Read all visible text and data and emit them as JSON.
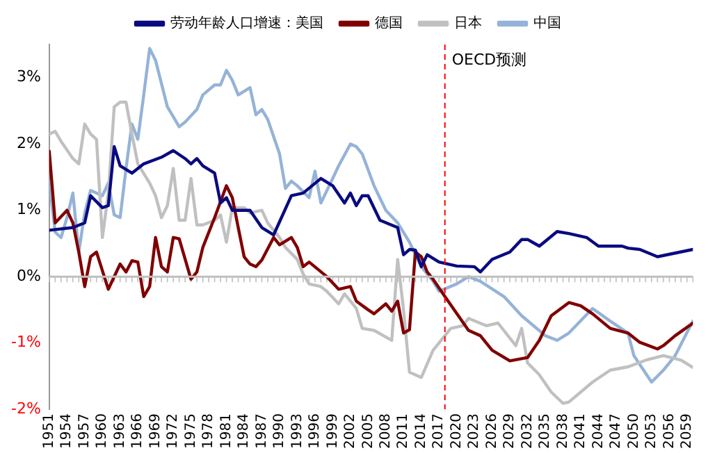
{
  "chart_data": {
    "type": "line",
    "legend": "top",
    "grid": false,
    "marker": "none",
    "line_style": "solid",
    "xlim": [
      1951,
      2060
    ],
    "xticks": [
      1951,
      1954,
      1957,
      1960,
      1963,
      1966,
      1969,
      1972,
      1975,
      1978,
      1981,
      1984,
      1987,
      1990,
      1993,
      1996,
      1999,
      2002,
      2005,
      2008,
      2011,
      2014,
      2017,
      2020,
      2023,
      2026,
      2029,
      2032,
      2035,
      2038,
      2041,
      2044,
      2047,
      2050,
      2053,
      2056,
      2059
    ],
    "ylim": [
      -2,
      3.5
    ],
    "yticks": [
      {
        "value": -2,
        "label": "-2%"
      },
      {
        "value": -1,
        "label": "-1%"
      },
      {
        "value": 0,
        "label": "0%"
      },
      {
        "value": 1,
        "label": "1%"
      },
      {
        "value": 2,
        "label": "2%"
      },
      {
        "value": 3,
        "label": "3%"
      }
    ],
    "ref_lines": [
      {
        "axis": "y",
        "value": 0,
        "color": "#bfbfbf",
        "line_style": "solid"
      },
      {
        "axis": "x",
        "value": 2018,
        "label": "OECD预测",
        "color": "#ff0000",
        "line_style": "dashed"
      }
    ],
    "series": [
      {
        "name": "劳动年龄人口增速：美国",
        "color": "#0a0a80",
        "x": [
          1951,
          1955,
          1957,
          1958,
          1960,
          1961,
          1962,
          1963,
          1965,
          1967,
          1970,
          1972,
          1974,
          1975,
          1976,
          1977,
          1979,
          1980,
          1981,
          1982,
          1985,
          1987,
          1989,
          1992,
          1994,
          1997,
          1999,
          2001,
          2002,
          2003,
          2004,
          2005,
          2007,
          2010,
          2011,
          2012,
          2013,
          2014,
          2015,
          2017,
          2020,
          2023,
          2024,
          2026,
          2029,
          2031,
          2032,
          2034,
          2037,
          2039,
          2042,
          2044,
          2048,
          2049,
          2051,
          2054,
          2060
        ],
        "values": [
          0.7,
          0.74,
          0.81,
          1.22,
          1.04,
          1.07,
          1.96,
          1.67,
          1.56,
          1.7,
          1.8,
          1.9,
          1.78,
          1.7,
          1.78,
          1.67,
          1.56,
          1.11,
          1.19,
          1.0,
          1.0,
          0.74,
          0.63,
          1.22,
          1.26,
          1.48,
          1.37,
          1.11,
          1.26,
          1.07,
          1.22,
          1.22,
          0.85,
          0.74,
          0.33,
          0.41,
          0.4,
          0.15,
          0.33,
          0.22,
          0.16,
          0.15,
          0.07,
          0.26,
          0.37,
          0.56,
          0.56,
          0.46,
          0.68,
          0.65,
          0.59,
          0.46,
          0.46,
          0.43,
          0.41,
          0.3,
          0.41
        ]
      },
      {
        "name": "德国",
        "color": "#800000",
        "x": [
          1951,
          1952,
          1954,
          1955,
          1956,
          1957,
          1958,
          1959,
          1961,
          1963,
          1964,
          1965,
          1966,
          1967,
          1968,
          1969,
          1970,
          1971,
          1972,
          1973,
          1975,
          1976,
          1977,
          1979,
          1981,
          1982,
          1983,
          1984,
          1985,
          1986,
          1987,
          1989,
          1990,
          1992,
          1993,
          1994,
          1995,
          1998,
          2000,
          2002,
          2003,
          2005,
          2006,
          2008,
          2009,
          2010,
          2011,
          2012,
          2013,
          2014,
          2015,
          2016,
          2018,
          2022,
          2024,
          2026,
          2029,
          2032,
          2034,
          2036,
          2039,
          2041,
          2043,
          2046,
          2049,
          2051,
          2054,
          2055,
          2057,
          2060
        ],
        "values": [
          1.89,
          0.81,
          1.0,
          0.81,
          0.37,
          -0.15,
          0.3,
          0.37,
          -0.19,
          0.19,
          0.07,
          0.24,
          0.22,
          -0.3,
          -0.15,
          0.59,
          0.15,
          0.07,
          0.59,
          0.57,
          -0.04,
          0.07,
          0.44,
          0.89,
          1.37,
          1.19,
          0.74,
          0.3,
          0.19,
          0.15,
          0.25,
          0.59,
          0.48,
          0.59,
          0.44,
          0.15,
          0.22,
          0,
          -0.19,
          -0.15,
          -0.37,
          -0.5,
          -0.56,
          -0.41,
          -0.52,
          -0.37,
          -0.85,
          -0.8,
          0.37,
          0.3,
          0.07,
          -0.04,
          -0.3,
          -0.81,
          -0.89,
          -1.11,
          -1.27,
          -1.22,
          -0.96,
          -0.59,
          -0.39,
          -0.44,
          -0.56,
          -0.78,
          -0.85,
          -0.99,
          -1.09,
          -1.04,
          -0.89,
          -0.7
        ]
      },
      {
        "name": "日本",
        "color": "#c0c0c0",
        "x": [
          1951,
          1952,
          1953,
          1955,
          1956,
          1957,
          1958,
          1959,
          1960,
          1961,
          1962,
          1963,
          1964,
          1965,
          1966,
          1968,
          1969,
          1970,
          1971,
          1972,
          1973,
          1974,
          1975,
          1976,
          1977,
          1979,
          1980,
          1981,
          1982,
          1984,
          1985,
          1987,
          1988,
          1990,
          1991,
          1993,
          1994,
          1995,
          1997,
          1998,
          2000,
          2001,
          2002,
          2003,
          2004,
          2006,
          2009,
          2010,
          2011,
          2012,
          2014,
          2016,
          2018,
          2019,
          2021,
          2022,
          2025,
          2027,
          2030,
          2031,
          2032,
          2034,
          2036,
          2038,
          2039,
          2043,
          2046,
          2049,
          2052,
          2055,
          2058,
          2060
        ],
        "values": [
          2.15,
          2.19,
          2.04,
          1.78,
          1.7,
          2.3,
          2.15,
          2.07,
          0.59,
          1.26,
          2.56,
          2.63,
          2.63,
          2.15,
          1.7,
          1.41,
          1.22,
          0.89,
          1.07,
          1.63,
          0.85,
          0.85,
          1.48,
          0.78,
          0.78,
          0.85,
          0.93,
          0.52,
          1.04,
          1.04,
          0.96,
          1.0,
          0.81,
          0.59,
          0.44,
          0.26,
          0.04,
          -0.11,
          -0.15,
          -0.22,
          -0.41,
          -0.26,
          -0.37,
          -0.48,
          -0.78,
          -0.81,
          -0.96,
          0.26,
          -0.5,
          -1.44,
          -1.52,
          -1.11,
          -0.89,
          -0.78,
          -0.74,
          -0.63,
          -0.74,
          -0.7,
          -1.04,
          -0.78,
          -1.3,
          -1.48,
          -1.74,
          -1.91,
          -1.89,
          -1.59,
          -1.41,
          -1.36,
          -1.26,
          -1.19,
          -1.26,
          -1.37
        ]
      },
      {
        "name": "中国",
        "color": "#95b3d7",
        "x": [
          1951,
          1952,
          1953,
          1954,
          1955,
          1956,
          1957,
          1958,
          1960,
          1961,
          1962,
          1963,
          1964,
          1965,
          1966,
          1967,
          1968,
          1969,
          1971,
          1973,
          1974,
          1976,
          1977,
          1979,
          1980,
          1981,
          1982,
          1983,
          1985,
          1986,
          1987,
          1988,
          1990,
          1991,
          1992,
          1993,
          1995,
          1996,
          1997,
          1999,
          2000,
          2002,
          2003,
          2004,
          2006,
          2008,
          2010,
          2012,
          2014,
          2016,
          2017,
          2020,
          2022,
          2024,
          2028,
          2031,
          2033,
          2035,
          2037,
          2039,
          2043,
          2046,
          2049,
          2050,
          2053,
          2055,
          2057,
          2060
        ],
        "values": [
          1.44,
          0.67,
          0.59,
          0.89,
          1.26,
          0.37,
          0.96,
          1.3,
          1.22,
          1.41,
          0.93,
          0.89,
          1.63,
          2.3,
          2.07,
          2.74,
          3.44,
          3.26,
          2.56,
          2.26,
          2.33,
          2.52,
          2.74,
          2.89,
          2.89,
          3.11,
          2.96,
          2.74,
          2.85,
          2.44,
          2.52,
          2.37,
          1.85,
          1.33,
          1.44,
          1.37,
          1.19,
          1.59,
          1.11,
          1.48,
          1.67,
          2.0,
          1.96,
          1.85,
          1.37,
          1.0,
          0.81,
          0.52,
          0.15,
          -0.07,
          -0.22,
          -0.11,
          0,
          -0.07,
          -0.3,
          -0.59,
          -0.74,
          -0.89,
          -0.96,
          -0.85,
          -0.48,
          -0.67,
          -0.85,
          -1.19,
          -1.59,
          -1.41,
          -1.19,
          -0.67
        ]
      }
    ]
  }
}
